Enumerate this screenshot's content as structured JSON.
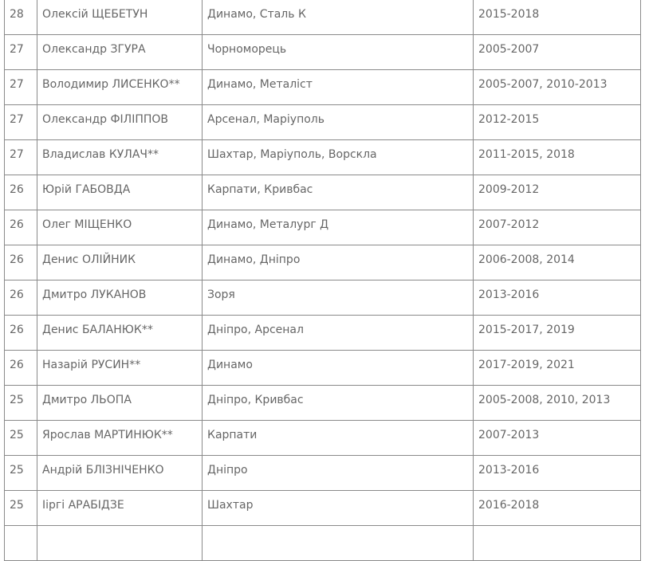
{
  "rows": [
    [
      "28",
      "Олексій ЩЕБЕТУН",
      "Динамо, Сталь К",
      "2015-2018"
    ],
    [
      "27",
      "Олександр ЗГУРА",
      "Чорноморець",
      "2005-2007"
    ],
    [
      "27",
      "Володимир ЛИСЕНКО**",
      "Динамо, Металіст",
      "2005-2007, 2010-2013"
    ],
    [
      "27",
      "Олександр ФІЛІППОВ",
      "Арсенал, Маріуполь",
      "2012-2015"
    ],
    [
      "27",
      "Владислав КУЛАЧ**",
      "Шахтар, Маріуполь, Ворскла",
      "2011-2015, 2018"
    ],
    [
      "26",
      "Юрій ГАБОВДА",
      "Карпати, Кривбас",
      "2009-2012"
    ],
    [
      "26",
      "Олег МІЩЕНКО",
      "Динамо, Металург Д",
      "2007-2012"
    ],
    [
      "26",
      "Денис ОЛІЙНИК",
      "Динамо, Дніпро",
      "2006-2008, 2014"
    ],
    [
      "26",
      "Дмитро ЛУКАНОВ",
      "Зоря",
      "2013-2016"
    ],
    [
      "26",
      "Денис БАЛАНЮК**",
      "Дніпро, Арсенал",
      "2015-2017, 2019"
    ],
    [
      "26",
      "Назарій РУСИН**",
      "Динамо",
      "2017-2019, 2021"
    ],
    [
      "25",
      "Дмитро ЛЬОПА",
      "Дніпро, Кривбас",
      "2005-2008, 2010, 2013"
    ],
    [
      "25",
      "Ярослав МАРТИНЮК**",
      "Карпати",
      "2007-2013"
    ],
    [
      "25",
      "Андрій БЛІЗНІЧЕНКО",
      "Дніпро",
      "2013-2016"
    ],
    [
      "25",
      "Ііргі АРАБІДЗЕ",
      "Шахтар",
      "2016-2018"
    ]
  ]
}
